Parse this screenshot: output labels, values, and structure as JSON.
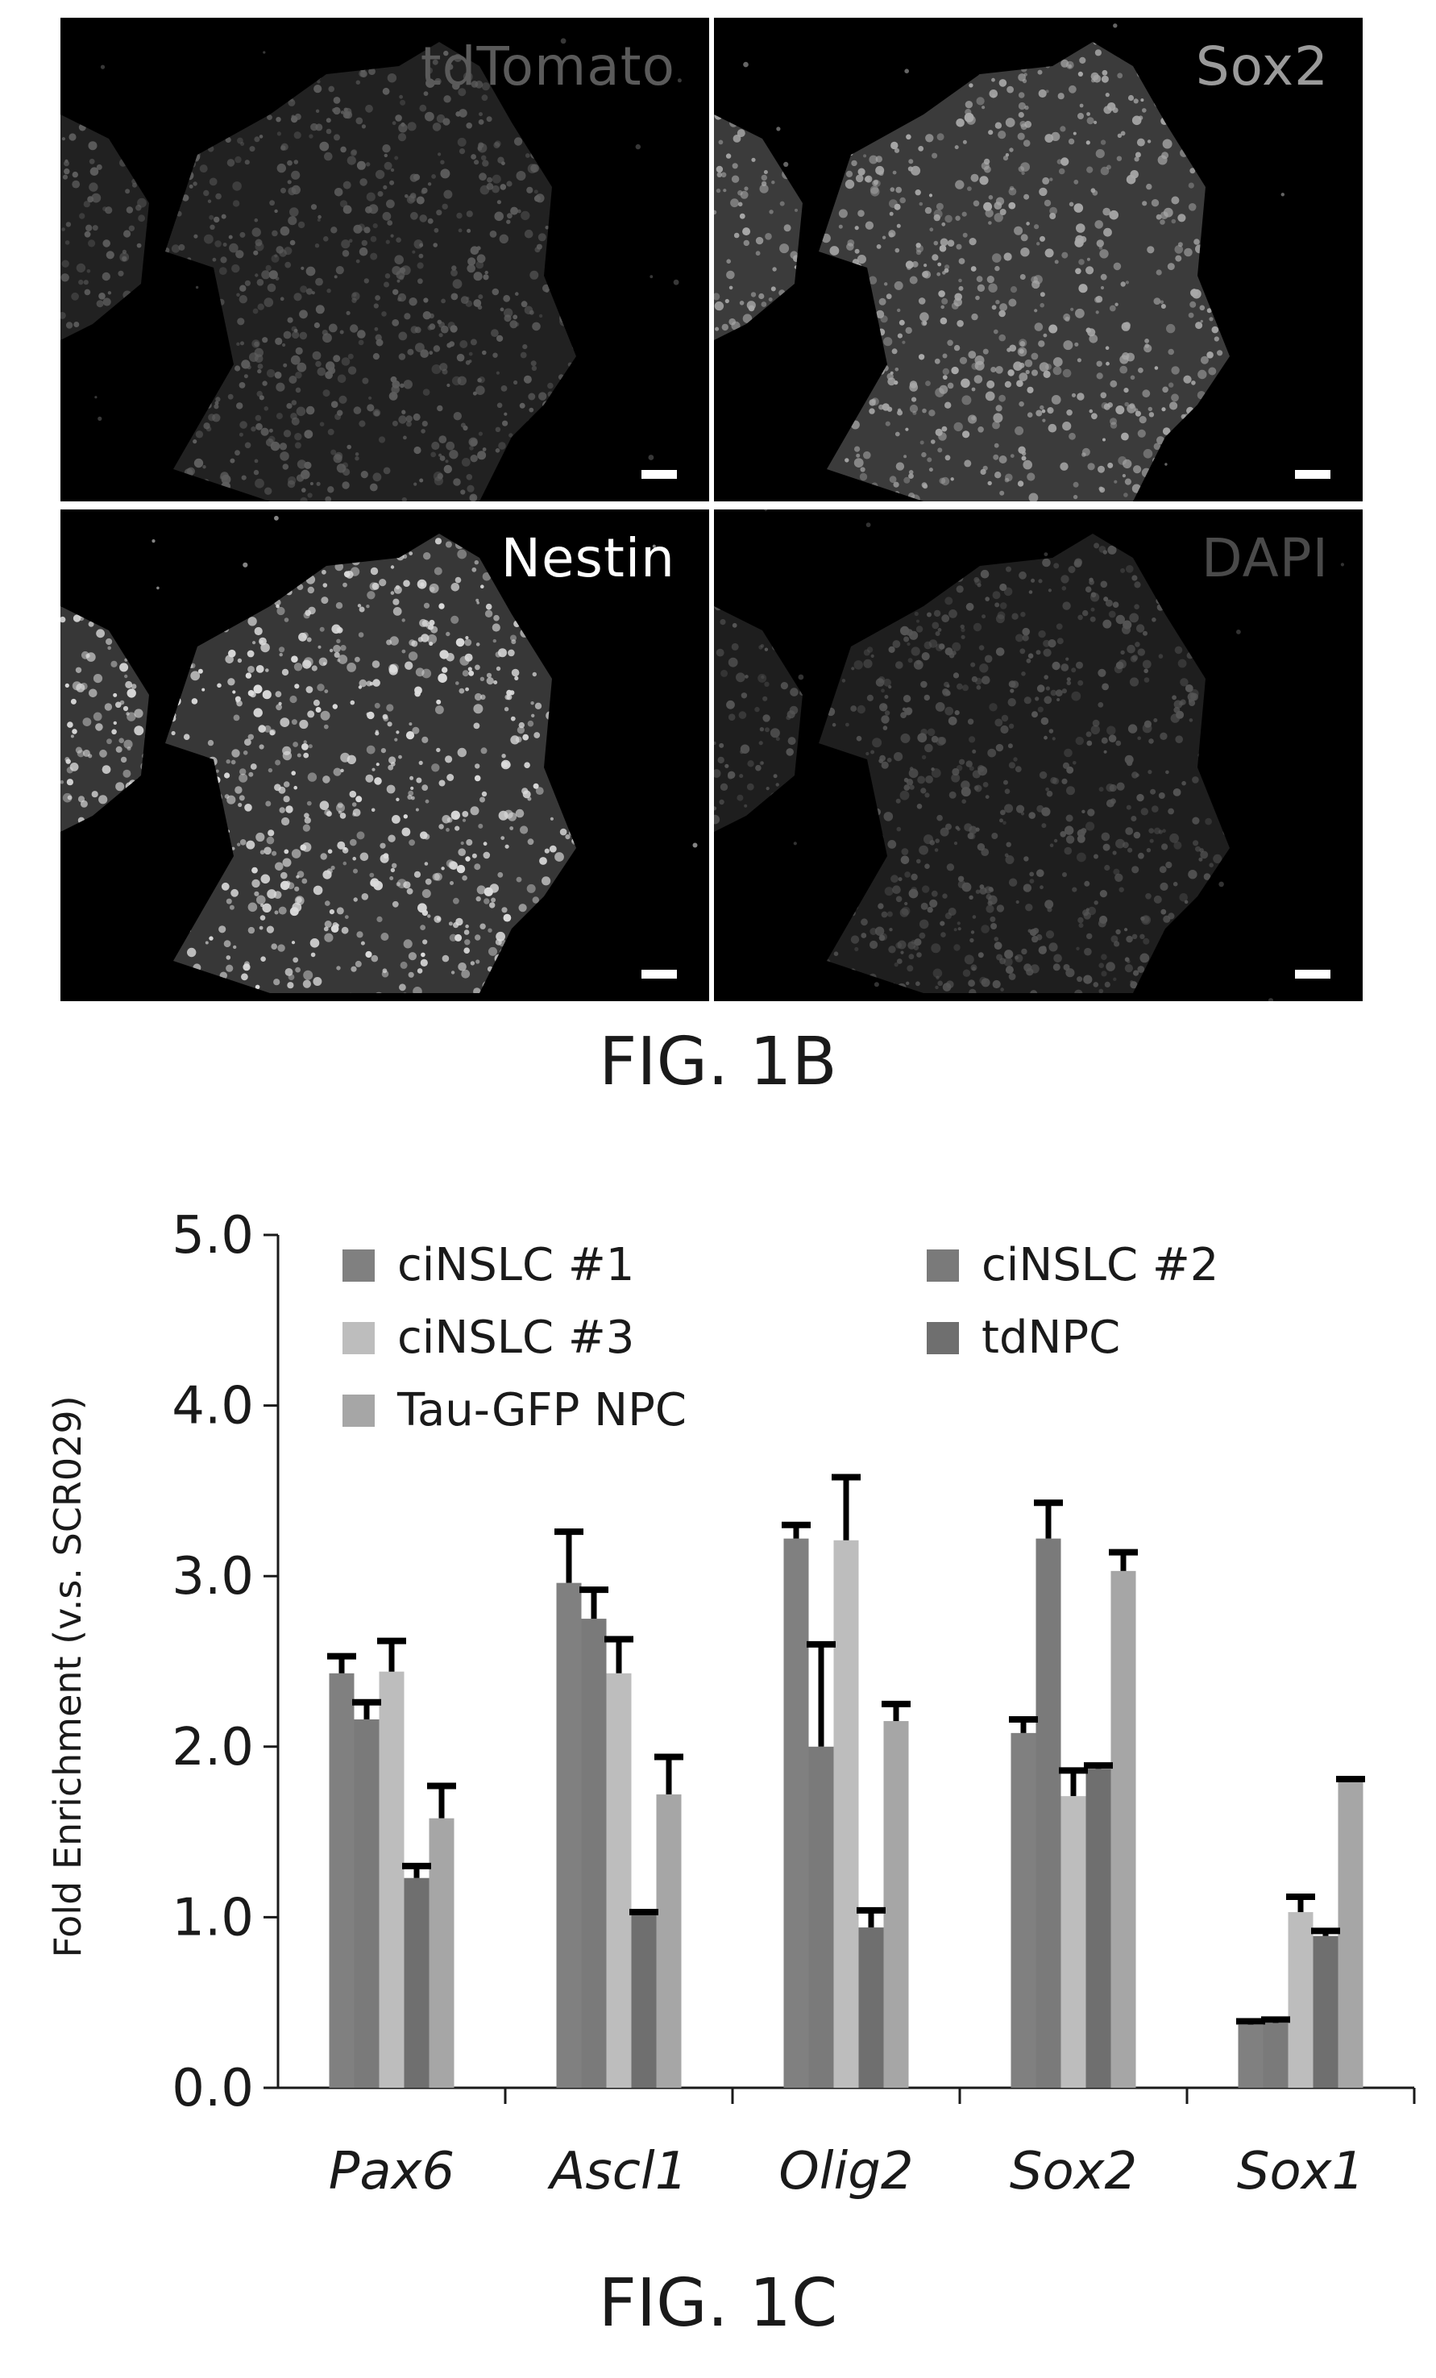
{
  "figure_1b": {
    "caption": "FIG. 1B",
    "panels": [
      {
        "id": "tl",
        "label": "tdTomato",
        "label_color": "#5a5a5a",
        "cell_color": "#5e5e5e"
      },
      {
        "id": "tr",
        "label": "Sox2",
        "label_color": "#9a9a9a",
        "cell_color": "#a8a8a8"
      },
      {
        "id": "bl",
        "label": "Nestin",
        "label_color": "#ffffff",
        "cell_color": "#dcdcdc"
      },
      {
        "id": "br",
        "label": "DAPI",
        "label_color": "#4a4a4a",
        "cell_color": "#555555"
      }
    ]
  },
  "figure_1c": {
    "caption": "FIG. 1C"
  },
  "chart_data": {
    "type": "bar",
    "ylabel": "Fold Enrichment (v.s. SCR029)",
    "ylim": [
      0,
      5
    ],
    "yticks": [
      "0.0",
      "1.0",
      "2.0",
      "3.0",
      "4.0",
      "5.0"
    ],
    "categories": [
      "Pax6",
      "Ascl1",
      "Olig2",
      "Sox2",
      "Sox1"
    ],
    "legend_position": "top",
    "series": [
      {
        "name": "ciNSLC #1",
        "color": "#808080",
        "values": [
          2.43,
          2.96,
          3.22,
          2.08,
          0.37
        ],
        "errors": [
          0.1,
          0.3,
          0.08,
          0.08,
          0.02
        ]
      },
      {
        "name": "ciNSLC #2",
        "color": "#7a7a7a",
        "values": [
          2.16,
          2.75,
          2.0,
          3.22,
          0.38
        ],
        "errors": [
          0.1,
          0.17,
          0.6,
          0.21,
          0.02
        ]
      },
      {
        "name": "ciNSLC #3",
        "color": "#bdbdbd",
        "values": [
          2.44,
          2.43,
          3.21,
          1.71,
          1.03
        ],
        "errors": [
          0.18,
          0.2,
          0.37,
          0.15,
          0.09
        ]
      },
      {
        "name": "tdNPC",
        "color": "#6f6f6f",
        "values": [
          1.23,
          1.02,
          0.94,
          1.87,
          0.89
        ],
        "errors": [
          0.07,
          0.01,
          0.1,
          0.02,
          0.03
        ]
      },
      {
        "name": "Tau-GFP NPC",
        "color": "#a6a6a6",
        "values": [
          1.58,
          1.72,
          2.15,
          3.03,
          1.8
        ],
        "errors": [
          0.19,
          0.22,
          0.1,
          0.11,
          0.01
        ]
      }
    ]
  }
}
